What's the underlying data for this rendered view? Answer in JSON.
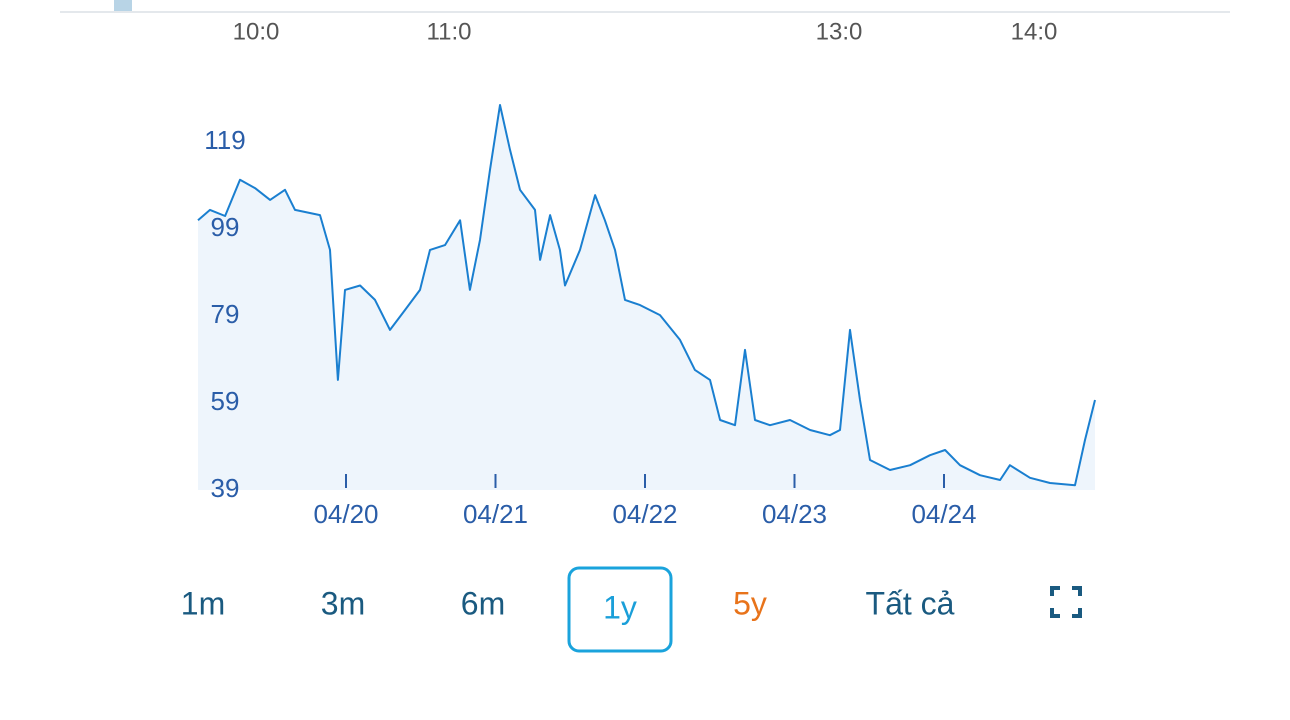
{
  "top_axis_labels": [
    "10:0",
    "11:0",
    "13:0",
    "14:0"
  ],
  "chart_data": {
    "type": "line",
    "x": [
      2019.26,
      2019.34,
      2019.441,
      2019.541,
      2019.641,
      2019.742,
      2019.842,
      2019.909,
      2020.076,
      2020.143,
      2020.196,
      2020.243,
      2020.344,
      2020.444,
      2020.544,
      2020.645,
      2020.745,
      2020.812,
      2020.912,
      2021.013,
      2021.079,
      2021.146,
      2021.213,
      2021.28,
      2021.347,
      2021.414,
      2021.514,
      2021.548,
      2021.615,
      2021.681,
      2021.715,
      2021.815,
      2021.916,
      2021.982,
      2022.049,
      2022.116,
      2022.217,
      2022.35,
      2022.484,
      2022.584,
      2022.685,
      2022.752,
      2022.852,
      2022.919,
      2022.986,
      2023.086,
      2023.22,
      2023.354,
      2023.487,
      2023.554,
      2023.621,
      2023.688,
      2023.755,
      2023.889,
      2024.023,
      2024.156,
      2024.257,
      2024.357,
      2024.491,
      2024.625,
      2024.691,
      2024.825,
      2024.959,
      2025.126,
      2025.193,
      2025.26
    ],
    "series": [
      {
        "color": "#1a7fd0",
        "fill": "#eef5fc",
        "values": [
          101,
          103.4,
          102,
          110.3,
          108.4,
          105.7,
          108,
          103.4,
          102.2,
          94.2,
          64.3,
          85,
          86,
          82.7,
          75.8,
          80.4,
          85,
          94.2,
          95.3,
          101,
          85,
          96.5,
          112.6,
          127.5,
          117.2,
          108,
          103.4,
          91.9,
          102.2,
          94.2,
          86,
          94.2,
          106.8,
          101,
          94.2,
          82.7,
          81.5,
          79.2,
          73.5,
          66.6,
          64.3,
          55.1,
          53.9,
          71.2,
          55.1,
          53.9,
          55.1,
          52.8,
          51.6,
          52.8,
          75.8,
          59.7,
          45.9,
          43.6,
          44.7,
          47,
          48.2,
          44.7,
          42.4,
          41.3,
          44.7,
          41.8,
          40.6,
          40.1,
          50.5,
          59.7
        ]
      }
    ],
    "xlim": [
      2019.26,
      2025.26
    ],
    "ylim": [
      39,
      129
    ],
    "yticks": [
      39,
      59,
      79,
      99,
      119
    ],
    "xticks": [
      {
        "value": 2020.25,
        "label": "04/20"
      },
      {
        "value": 2021.25,
        "label": "04/21"
      },
      {
        "value": 2022.25,
        "label": "04/22"
      },
      {
        "value": 2023.25,
        "label": "04/23"
      },
      {
        "value": 2024.25,
        "label": "04/24"
      }
    ]
  },
  "range_buttons": [
    "1m",
    "3m",
    "6m",
    "1y",
    "5y",
    "Tất cả"
  ]
}
